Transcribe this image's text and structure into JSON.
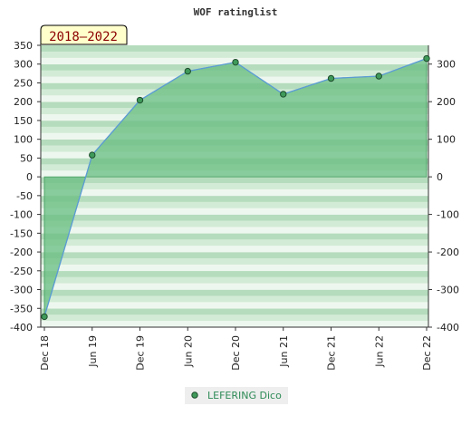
{
  "chart_data": {
    "type": "area",
    "title": "WOF ratinglist",
    "badge": "2018–2022",
    "x": [
      "Dec 18",
      "Jun 19",
      "Dec 19",
      "Jun 20",
      "Dec 20",
      "Jun 21",
      "Dec 21",
      "Jun 22",
      "Dec 22"
    ],
    "series": [
      {
        "name": "LEFERING Dico",
        "values": [
          -372,
          58,
          204,
          281,
          305,
          220,
          262,
          268,
          315
        ]
      }
    ],
    "left_axis": {
      "ylim": [
        -400,
        350
      ],
      "ticks": [
        -400,
        -350,
        -300,
        -250,
        -200,
        -150,
        -100,
        -50,
        0,
        50,
        100,
        150,
        200,
        250,
        300,
        350
      ]
    },
    "right_axis": {
      "ylim": [
        -400,
        350
      ],
      "ticks": [
        -400,
        -300,
        -200,
        -100,
        0,
        100,
        200,
        300
      ]
    },
    "legend": "bottom-center",
    "colors": {
      "fill": "#6cbf84",
      "line": "#5b9bd5",
      "marker": "#3f9a5a",
      "band_dark": "#b5dcbd",
      "band_mid": "#d2ebd6",
      "band_light": "#eef7ef",
      "badge_bg": "#ffffcc",
      "legend_text": "#2e8b57"
    }
  }
}
